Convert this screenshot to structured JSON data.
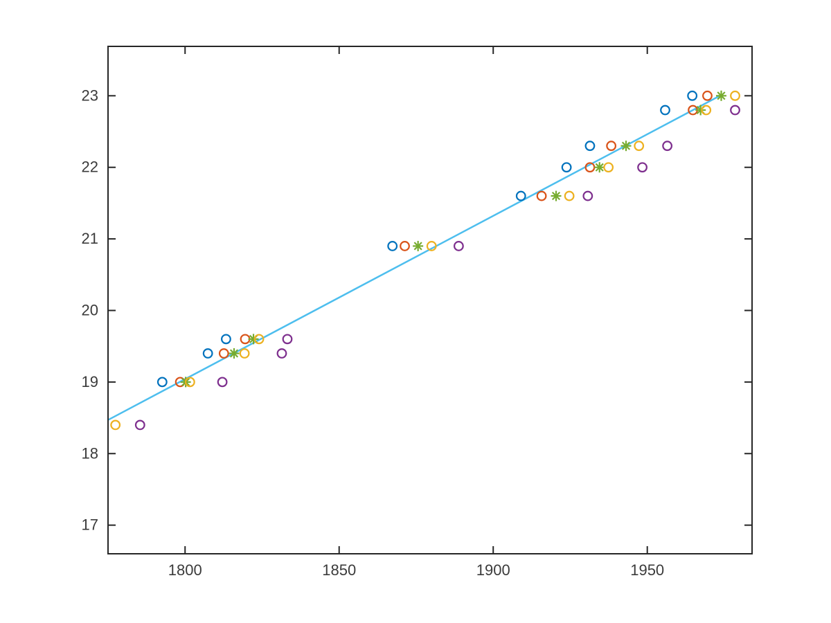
{
  "figure": {
    "background": "#ffffff",
    "title": ""
  },
  "chart_data": {
    "type": "scatter",
    "title": "",
    "subtitle": "",
    "xlabel": "",
    "ylabel": "",
    "legend": null,
    "axes": {
      "xlim": [
        1775,
        1984
      ],
      "ylim": [
        16.6,
        23.69
      ],
      "xticks": [
        1800,
        1850,
        1900,
        1950
      ],
      "yticks": [
        17,
        18,
        19,
        20,
        21,
        22,
        23
      ],
      "grid": false,
      "box": true,
      "tick_direction": "in",
      "tick_length": 11,
      "axis_color": "#262626",
      "axis_line_width": 2,
      "tick_label_color": "#3b3b3b",
      "tick_label_size": 22
    },
    "series": [
      {
        "name": "series-1-blue-circles",
        "marker": "circle",
        "color": "#0072BD",
        "marker_size": 6.3,
        "stroke_width": 2.2,
        "points": [
          [
            1792.6,
            19.0
          ],
          [
            1807.4,
            19.4
          ],
          [
            1813.3,
            19.6
          ],
          [
            1867.3,
            20.9
          ],
          [
            1909.0,
            21.6
          ],
          [
            1923.8,
            22.0
          ],
          [
            1931.4,
            22.3
          ],
          [
            1955.8,
            22.8
          ],
          [
            1964.6,
            23.0
          ]
        ]
      },
      {
        "name": "series-2-orange-circles",
        "marker": "circle",
        "color": "#D95319",
        "marker_size": 6.3,
        "stroke_width": 2.2,
        "points": [
          [
            1798.4,
            19.0
          ],
          [
            1812.6,
            19.4
          ],
          [
            1819.5,
            19.6
          ],
          [
            1871.3,
            20.9
          ],
          [
            1915.7,
            21.6
          ],
          [
            1931.4,
            22.0
          ],
          [
            1938.3,
            22.3
          ],
          [
            1964.8,
            22.8
          ],
          [
            1969.5,
            23.0
          ]
        ]
      },
      {
        "name": "series-3-green-asterisks",
        "marker": "asterisk",
        "color": "#77AC30",
        "marker_size": 7.5,
        "stroke_width": 2.2,
        "points": [
          [
            1800.2,
            19.0
          ],
          [
            1815.9,
            19.4
          ],
          [
            1822.2,
            19.6
          ],
          [
            1875.6,
            20.9
          ],
          [
            1920.4,
            21.6
          ],
          [
            1934.5,
            22.0
          ],
          [
            1943.1,
            22.3
          ],
          [
            1967.3,
            22.8
          ],
          [
            1974.0,
            23.0
          ]
        ]
      },
      {
        "name": "series-4-yellow-circles",
        "marker": "circle",
        "color": "#EDB120",
        "marker_size": 6.3,
        "stroke_width": 2.2,
        "points": [
          [
            1777.4,
            18.4
          ],
          [
            1801.6,
            19.0
          ],
          [
            1819.3,
            19.4
          ],
          [
            1824.0,
            19.6
          ],
          [
            1880.0,
            20.9
          ],
          [
            1924.7,
            21.6
          ],
          [
            1937.4,
            22.0
          ],
          [
            1947.3,
            22.3
          ],
          [
            1969.1,
            22.8
          ],
          [
            1978.5,
            23.0
          ]
        ]
      },
      {
        "name": "series-5-purple-circles",
        "marker": "circle",
        "color": "#7E2F8E",
        "marker_size": 6.3,
        "stroke_width": 2.2,
        "points": [
          [
            1785.4,
            18.4
          ],
          [
            1812.1,
            19.0
          ],
          [
            1831.4,
            19.4
          ],
          [
            1833.2,
            19.6
          ],
          [
            1888.8,
            20.9
          ],
          [
            1930.7,
            21.6
          ],
          [
            1948.4,
            22.0
          ],
          [
            1956.5,
            22.3
          ],
          [
            1978.5,
            22.8
          ]
        ]
      }
    ],
    "fit_line": {
      "name": "fit-line",
      "color": "#4DBEEE",
      "width": 2.5,
      "from": [
        1775.0,
        18.47
      ],
      "to": [
        1974.0,
        23.01
      ]
    }
  }
}
